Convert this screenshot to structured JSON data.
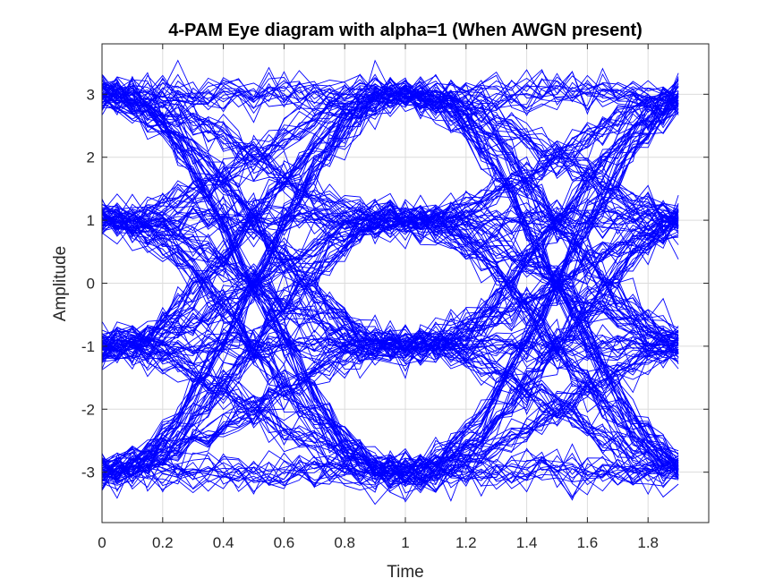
{
  "chart_data": {
    "type": "line",
    "title": "4-PAM Eye diagram with alpha=1 (When AWGN present)",
    "xlabel": "Time",
    "ylabel": "Amplitude",
    "xlim": [
      0,
      2
    ],
    "ylim": [
      -3.8,
      3.8
    ],
    "x_ticks": [
      0,
      0.2,
      0.4,
      0.6,
      0.8,
      1,
      1.2,
      1.4,
      1.6,
      1.8
    ],
    "x_tick_labels": [
      "0",
      "0.2",
      "0.4",
      "0.6",
      "0.8",
      "1",
      "1.2",
      "1.4",
      "1.6",
      "1.8"
    ],
    "y_ticks": [
      3,
      2,
      1,
      0,
      -1,
      -2,
      -3
    ],
    "y_tick_labels": [
      "3",
      "2",
      "1",
      "0",
      "-1",
      "-2",
      "-3"
    ],
    "grid": true,
    "line_color": "#0000ff",
    "x_end": 1.9,
    "symbol_levels": [
      -3,
      -1,
      1,
      3
    ],
    "symbol_times": [
      0,
      1
    ],
    "crossing_times": [
      0.5,
      1.5
    ],
    "traces_per_level_pair": 10,
    "noise_std": 0.15
  }
}
